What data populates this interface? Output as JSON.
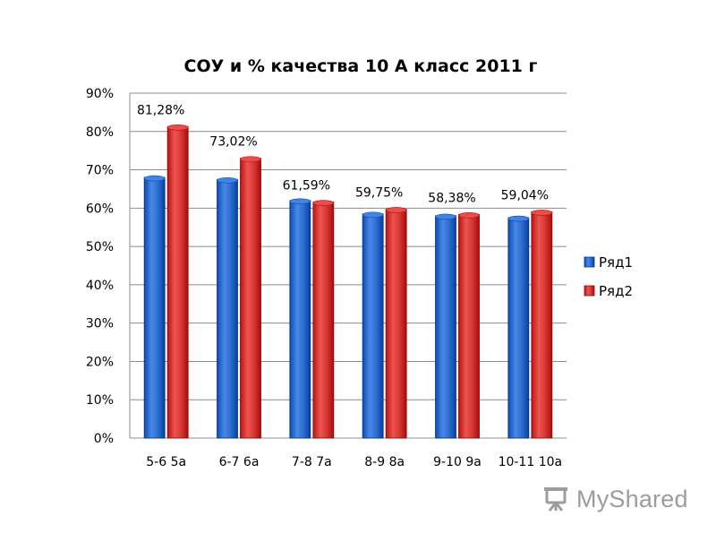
{
  "chart_data": {
    "type": "bar",
    "title": "СОУ и % качества 10 А класс 2011 г",
    "categories": [
      "5-6 5а",
      "6-7 6а",
      "7-8 7а",
      "8-9 8а",
      "9-10 9а",
      "10-11 10а"
    ],
    "series": [
      {
        "name": "Ряд1",
        "values": [
          0.68,
          0.675,
          0.62,
          0.585,
          0.58,
          0.575
        ],
        "color": "#2f6fd0"
      },
      {
        "name": "Ряд2",
        "values": [
          0.8128,
          0.7302,
          0.6159,
          0.5975,
          0.5838,
          0.5904
        ],
        "color": "#d63a36"
      }
    ],
    "data_labels": [
      "81,28%",
      "73,02%",
      "61,59%",
      "59,75%",
      "58,38%",
      "59,04%"
    ],
    "y_tick_labels": [
      "0%",
      "10%",
      "20%",
      "30%",
      "40%",
      "50%",
      "60%",
      "70%",
      "80%",
      "90%"
    ],
    "ylim": [
      0,
      0.9
    ],
    "grid": true,
    "legend_position": "right"
  },
  "watermark": {
    "text": "MyShared"
  }
}
